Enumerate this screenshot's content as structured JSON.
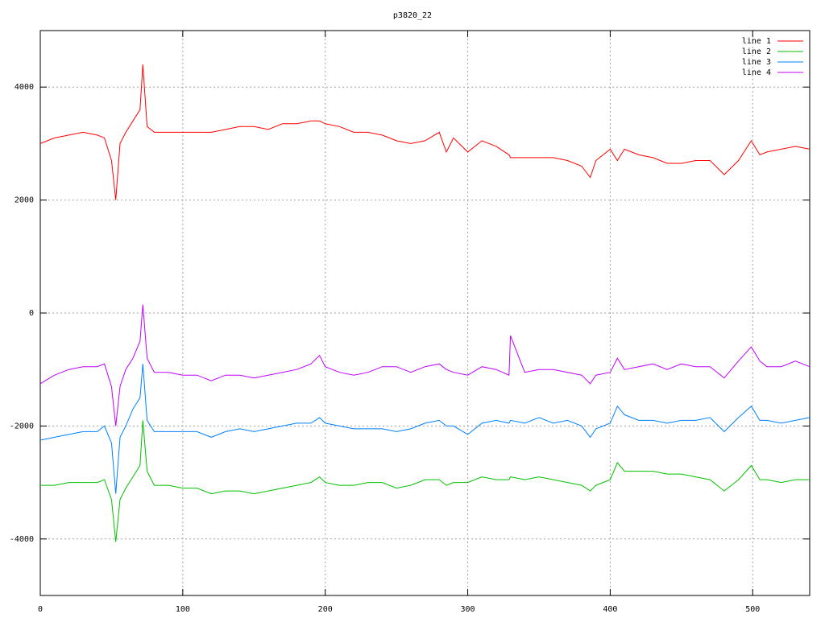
{
  "chart_data": {
    "type": "line",
    "title": "p3820_22",
    "x": [
      0,
      10,
      20,
      30,
      40,
      45,
      50,
      53,
      56,
      60,
      65,
      70,
      72,
      75,
      80,
      90,
      100,
      110,
      120,
      130,
      140,
      150,
      160,
      170,
      180,
      190,
      196,
      200,
      210,
      220,
      230,
      240,
      250,
      260,
      270,
      280,
      285,
      290,
      300,
      310,
      320,
      329,
      330,
      340,
      350,
      360,
      370,
      380,
      386,
      390,
      400,
      405,
      410,
      420,
      430,
      440,
      450,
      460,
      470,
      480,
      490,
      499,
      505,
      510,
      520,
      530,
      540
    ],
    "series": [
      {
        "name": "line 1",
        "color": "#ff0000",
        "values": [
          3000,
          3100,
          3150,
          3200,
          3150,
          3100,
          2700,
          2000,
          3000,
          3200,
          3400,
          3600,
          4400,
          3300,
          3200,
          3200,
          3200,
          3200,
          3200,
          3250,
          3300,
          3300,
          3250,
          3350,
          3350,
          3400,
          3400,
          3350,
          3300,
          3200,
          3200,
          3150,
          3050,
          3000,
          3050,
          3200,
          2850,
          3100,
          2850,
          3050,
          2950,
          2800,
          2750,
          2750,
          2750,
          2750,
          2700,
          2600,
          2400,
          2700,
          2900,
          2700,
          2900,
          2800,
          2750,
          2650,
          2650,
          2700,
          2700,
          2450,
          2700,
          3050,
          2800,
          2850,
          2900,
          2950,
          2900
        ]
      },
      {
        "name": "line 2",
        "color": "#00c000",
        "values": [
          -3050,
          -3050,
          -3000,
          -3000,
          -3000,
          -2950,
          -3300,
          -4050,
          -3300,
          -3100,
          -2900,
          -2700,
          -1900,
          -2800,
          -3050,
          -3050,
          -3100,
          -3100,
          -3200,
          -3150,
          -3150,
          -3200,
          -3150,
          -3100,
          -3050,
          -3000,
          -2900,
          -3000,
          -3050,
          -3050,
          -3000,
          -3000,
          -3100,
          -3050,
          -2950,
          -2950,
          -3050,
          -3000,
          -3000,
          -2900,
          -2950,
          -2950,
          -2900,
          -2950,
          -2900,
          -2950,
          -3000,
          -3050,
          -3150,
          -3050,
          -2950,
          -2650,
          -2800,
          -2800,
          -2800,
          -2850,
          -2850,
          -2900,
          -2950,
          -3150,
          -2950,
          -2700,
          -2950,
          -2950,
          -3000,
          -2950,
          -2950
        ]
      },
      {
        "name": "line 3",
        "color": "#0080ff",
        "values": [
          -2250,
          -2200,
          -2150,
          -2100,
          -2100,
          -2000,
          -2300,
          -3200,
          -2200,
          -2000,
          -1700,
          -1500,
          -900,
          -1900,
          -2100,
          -2100,
          -2100,
          -2100,
          -2200,
          -2100,
          -2050,
          -2100,
          -2050,
          -2000,
          -1950,
          -1950,
          -1850,
          -1950,
          -2000,
          -2050,
          -2050,
          -2050,
          -2100,
          -2050,
          -1950,
          -1900,
          -2000,
          -2000,
          -2150,
          -1950,
          -1900,
          -1950,
          -1900,
          -1950,
          -1850,
          -1950,
          -1900,
          -2000,
          -2200,
          -2050,
          -1950,
          -1650,
          -1800,
          -1900,
          -1900,
          -1950,
          -1900,
          -1900,
          -1850,
          -2100,
          -1850,
          -1650,
          -1900,
          -1900,
          -1950,
          -1900,
          -1850
        ]
      },
      {
        "name": "line 4",
        "color": "#c000ff",
        "values": [
          -1250,
          -1100,
          -1000,
          -950,
          -950,
          -900,
          -1300,
          -2000,
          -1300,
          -1000,
          -800,
          -500,
          150,
          -800,
          -1050,
          -1050,
          -1100,
          -1100,
          -1200,
          -1100,
          -1100,
          -1150,
          -1100,
          -1050,
          -1000,
          -900,
          -750,
          -950,
          -1050,
          -1100,
          -1050,
          -950,
          -950,
          -1050,
          -950,
          -900,
          -1000,
          -1050,
          -1100,
          -950,
          -1000,
          -1100,
          -400,
          -1050,
          -1000,
          -1000,
          -1050,
          -1100,
          -1250,
          -1100,
          -1050,
          -800,
          -1000,
          -950,
          -900,
          -1000,
          -900,
          -950,
          -950,
          -1150,
          -850,
          -600,
          -850,
          -950,
          -950,
          -850,
          -950
        ]
      }
    ],
    "xlim": [
      0,
      540
    ],
    "xticks": [
      0,
      100,
      200,
      300,
      400,
      500
    ],
    "ylim": [
      -5000,
      5000
    ],
    "yticks": [
      -4000,
      -2000,
      0,
      2000,
      4000
    ],
    "grid": true,
    "legend": "top-right"
  }
}
